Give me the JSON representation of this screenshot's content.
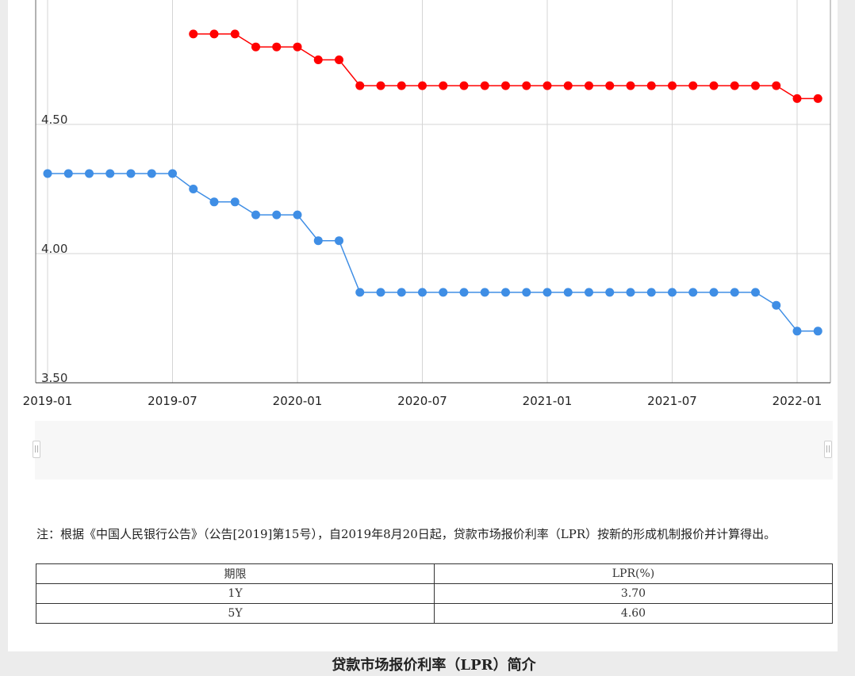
{
  "chart_data": {
    "type": "line",
    "y_ticks": [
      "3.50",
      "4.00",
      "4.50"
    ],
    "ylim": [
      3.5,
      5.0
    ],
    "x_ticks": [
      "2019-01",
      "2019-07",
      "2020-01",
      "2020-07",
      "2021-01",
      "2021-07",
      "2022-01"
    ],
    "grid": true,
    "x": [
      "2019-01",
      "2019-02",
      "2019-03",
      "2019-04",
      "2019-05",
      "2019-06",
      "2019-07",
      "2019-08",
      "2019-09",
      "2019-10",
      "2019-11",
      "2019-12",
      "2020-01",
      "2020-02",
      "2020-03",
      "2020-04",
      "2020-05",
      "2020-06",
      "2020-07",
      "2020-08",
      "2020-09",
      "2020-10",
      "2020-11",
      "2020-12",
      "2021-01",
      "2021-02",
      "2021-03",
      "2021-04",
      "2021-05",
      "2021-06",
      "2021-07",
      "2021-08",
      "2021-09",
      "2021-10",
      "2021-11",
      "2021-12",
      "2022-01",
      "2022-02"
    ],
    "series": [
      {
        "color": "#ff0000",
        "values": [
          null,
          null,
          null,
          null,
          null,
          null,
          null,
          4.85,
          4.85,
          4.85,
          4.8,
          4.8,
          4.8,
          4.75,
          4.75,
          4.65,
          4.65,
          4.65,
          4.65,
          4.65,
          4.65,
          4.65,
          4.65,
          4.65,
          4.65,
          4.65,
          4.65,
          4.65,
          4.65,
          4.65,
          4.65,
          4.65,
          4.65,
          4.65,
          4.65,
          4.65,
          4.6,
          4.6
        ]
      },
      {
        "color": "#3f8ee5",
        "values": [
          4.31,
          4.31,
          4.31,
          4.31,
          4.31,
          4.31,
          4.31,
          4.25,
          4.2,
          4.2,
          4.15,
          4.15,
          4.15,
          4.05,
          4.05,
          3.85,
          3.85,
          3.85,
          3.85,
          3.85,
          3.85,
          3.85,
          3.85,
          3.85,
          3.85,
          3.85,
          3.85,
          3.85,
          3.85,
          3.85,
          3.85,
          3.85,
          3.85,
          3.85,
          3.85,
          3.8,
          3.7,
          3.7
        ]
      }
    ]
  },
  "note": "注：根据《中国人民银行公告》（公告[2019]第15号），自2019年8月20日起，贷款市场报价利率（LPR）按新的形成机制报价并计算得出。",
  "table": {
    "headers": [
      "期限",
      "LPR(%)"
    ],
    "rows": [
      [
        "1Y",
        "3.70"
      ],
      [
        "5Y",
        "4.60"
      ]
    ]
  },
  "section_title": "贷款市场报价利率（LPR）简介"
}
